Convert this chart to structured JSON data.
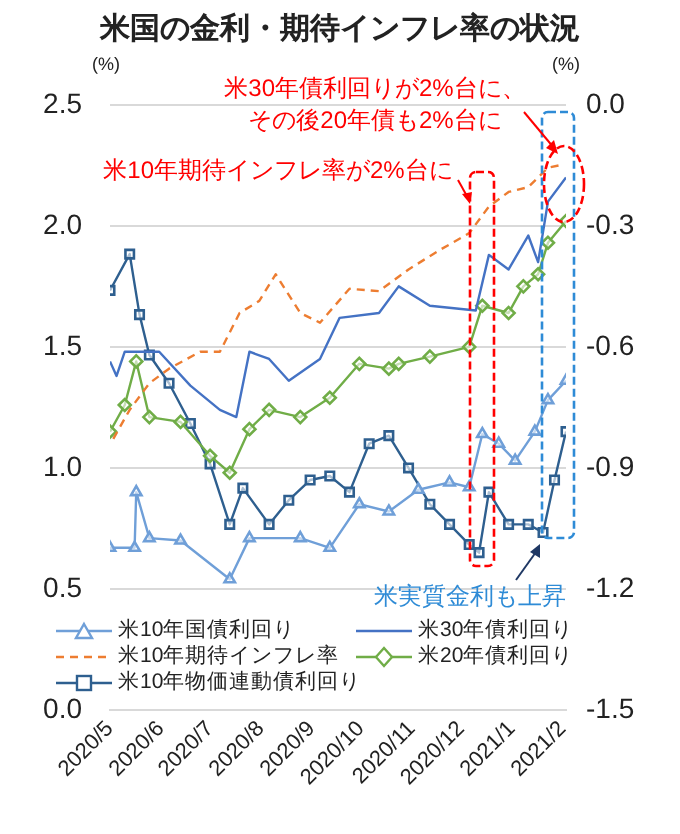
{
  "chart_data": {
    "type": "line",
    "title": "米国の金利・期待インフレ率の状況",
    "ylabel": "(%)",
    "y2label": "(%)",
    "annotations": [
      "米30年債利回りが2%台に、",
      "その後20年債も2%台に",
      "米10年期待インフレ率が2%台に",
      "米実質金利も上昇"
    ],
    "xlim": [
      "2020-05-01",
      "2021-02-03"
    ],
    "xticks": [
      {
        "value": "2020-05",
        "label": "2020/5"
      },
      {
        "value": "2020-06",
        "label": "2020/6"
      },
      {
        "value": "2020-07",
        "label": "2020/7"
      },
      {
        "value": "2020-08",
        "label": "2020/8"
      },
      {
        "value": "2020-09",
        "label": "2020/9"
      },
      {
        "value": "2020-10",
        "label": "2020/10"
      },
      {
        "value": "2020-11",
        "label": "2020/11"
      },
      {
        "value": "2020-12",
        "label": "2020/12"
      },
      {
        "value": "2021-01",
        "label": "2021/1"
      },
      {
        "value": "2021-02",
        "label": "2021/2"
      }
    ],
    "ylim": [
      0,
      2.5
    ],
    "yticks": [
      {
        "value": 0,
        "label": "0.0"
      },
      {
        "value": 0.5,
        "label": "0.5"
      },
      {
        "value": 1,
        "label": "1.0"
      },
      {
        "value": 1.5,
        "label": "1.5"
      },
      {
        "value": 2,
        "label": "2.0"
      },
      {
        "value": 2.5,
        "label": "2.5"
      }
    ],
    "y2lim": [
      -1.5,
      0
    ],
    "y2ticks": [
      {
        "value": -1.5,
        "label": "-1.5"
      },
      {
        "value": -1.2,
        "label": "-1.2"
      },
      {
        "value": -0.9,
        "label": "-0.9"
      },
      {
        "value": -0.6,
        "label": "-0.6"
      },
      {
        "value": -0.3,
        "label": "-0.3"
      },
      {
        "value": 0,
        "label": "0.0"
      }
    ],
    "grid": "y",
    "legend": "bottom",
    "series": [
      {
        "name": "米10年国債利回り",
        "color": "#6f9fd8",
        "marker": "triangle",
        "x": [
          "2020-05-01",
          "2020-05-16",
          "2020-05-17",
          "2020-05-25",
          "2020-06-13",
          "2020-07-13",
          "2020-07-25",
          "2020-08-25",
          "2020-09-12",
          "2020-09-30",
          "2020-10-18",
          "2020-11-05",
          "2020-11-24",
          "2020-12-06",
          "2020-12-14",
          "2020-12-24",
          "2021-01-03",
          "2021-01-15",
          "2021-01-23",
          "2021-02-03"
        ],
        "values": [
          0.67,
          0.67,
          0.9,
          0.71,
          0.7,
          0.54,
          0.71,
          0.71,
          0.67,
          0.85,
          0.82,
          0.91,
          0.94,
          0.92,
          1.14,
          1.1,
          1.03,
          1.15,
          1.28,
          1.36
        ]
      },
      {
        "name": "米30年債利回り",
        "color": "#4472c4",
        "x": [
          "2020-05-01",
          "2020-05-05",
          "2020-05-10",
          "2020-05-31",
          "2020-06-19",
          "2020-07-07",
          "2020-07-17",
          "2020-07-25",
          "2020-08-06",
          "2020-08-18",
          "2020-09-06",
          "2020-09-18",
          "2020-10-12",
          "2020-10-24",
          "2020-11-12",
          "2020-12-10",
          "2020-12-18",
          "2020-12-30",
          "2021-01-11",
          "2021-01-17",
          "2021-01-23",
          "2021-02-03"
        ],
        "values": [
          1.44,
          1.38,
          1.48,
          1.48,
          1.34,
          1.24,
          1.21,
          1.48,
          1.45,
          1.36,
          1.45,
          1.62,
          1.64,
          1.75,
          1.67,
          1.65,
          1.88,
          1.82,
          1.96,
          1.85,
          2.1,
          2.2
        ]
      },
      {
        "name": "米10年期待インフレ率",
        "color": "#ed7d31",
        "line_style": "dashed",
        "x": [
          "2020-05-03",
          "2020-05-13",
          "2020-05-25",
          "2020-06-06",
          "2020-06-25",
          "2020-07-07",
          "2020-07-19",
          "2020-07-31",
          "2020-08-10",
          "2020-08-25",
          "2020-09-06",
          "2020-09-24",
          "2020-10-12",
          "2020-10-30",
          "2020-11-18",
          "2020-12-06",
          "2020-12-18",
          "2020-12-30",
          "2021-01-11",
          "2021-01-23",
          "2021-01-30"
        ],
        "values": [
          1.12,
          1.24,
          1.35,
          1.41,
          1.48,
          1.48,
          1.64,
          1.69,
          1.8,
          1.64,
          1.6,
          1.74,
          1.73,
          1.82,
          1.9,
          1.97,
          2.08,
          2.14,
          2.16,
          2.24,
          2.25
        ]
      },
      {
        "name": "米20年債利回り",
        "color": "#70ad47",
        "marker": "diamond",
        "x": [
          "2020-05-01",
          "2020-05-10",
          "2020-05-17",
          "2020-05-25",
          "2020-06-13",
          "2020-07-01",
          "2020-07-13",
          "2020-07-25",
          "2020-08-06",
          "2020-08-25",
          "2020-09-12",
          "2020-09-30",
          "2020-10-18",
          "2020-10-24",
          "2020-11-12",
          "2020-12-06",
          "2020-12-14",
          "2020-12-30",
          "2021-01-08",
          "2021-01-17",
          "2021-01-23",
          "2021-02-03"
        ],
        "values": [
          1.15,
          1.26,
          1.44,
          1.21,
          1.19,
          1.05,
          0.98,
          1.16,
          1.24,
          1.21,
          1.29,
          1.43,
          1.41,
          1.43,
          1.46,
          1.5,
          1.67,
          1.64,
          1.75,
          1.8,
          1.93,
          2.02
        ]
      },
      {
        "name": "米10年物価連動債利回り",
        "color": "#2e5f8f",
        "marker": "square",
        "axis": "y2",
        "x": [
          "2020-05-01",
          "2020-05-13",
          "2020-05-19",
          "2020-05-25",
          "2020-06-06",
          "2020-06-19",
          "2020-07-01",
          "2020-07-13",
          "2020-07-21",
          "2020-08-06",
          "2020-08-18",
          "2020-08-31",
          "2020-09-12",
          "2020-09-24",
          "2020-10-06",
          "2020-10-18",
          "2020-10-30",
          "2020-11-12",
          "2020-11-24",
          "2020-12-06",
          "2020-12-12",
          "2020-12-18",
          "2020-12-30",
          "2021-01-11",
          "2021-01-20",
          "2021-01-27",
          "2021-02-03"
        ],
        "values": [
          -0.46,
          -0.37,
          -0.52,
          -0.62,
          -0.69,
          -0.79,
          -0.89,
          -1.04,
          -0.95,
          -1.04,
          -0.98,
          -0.93,
          -0.92,
          -0.96,
          -0.84,
          -0.82,
          -0.9,
          -0.99,
          -1.04,
          -1.09,
          -1.11,
          -0.96,
          -1.04,
          -1.04,
          -1.06,
          -0.93,
          -0.81
        ]
      }
    ]
  }
}
